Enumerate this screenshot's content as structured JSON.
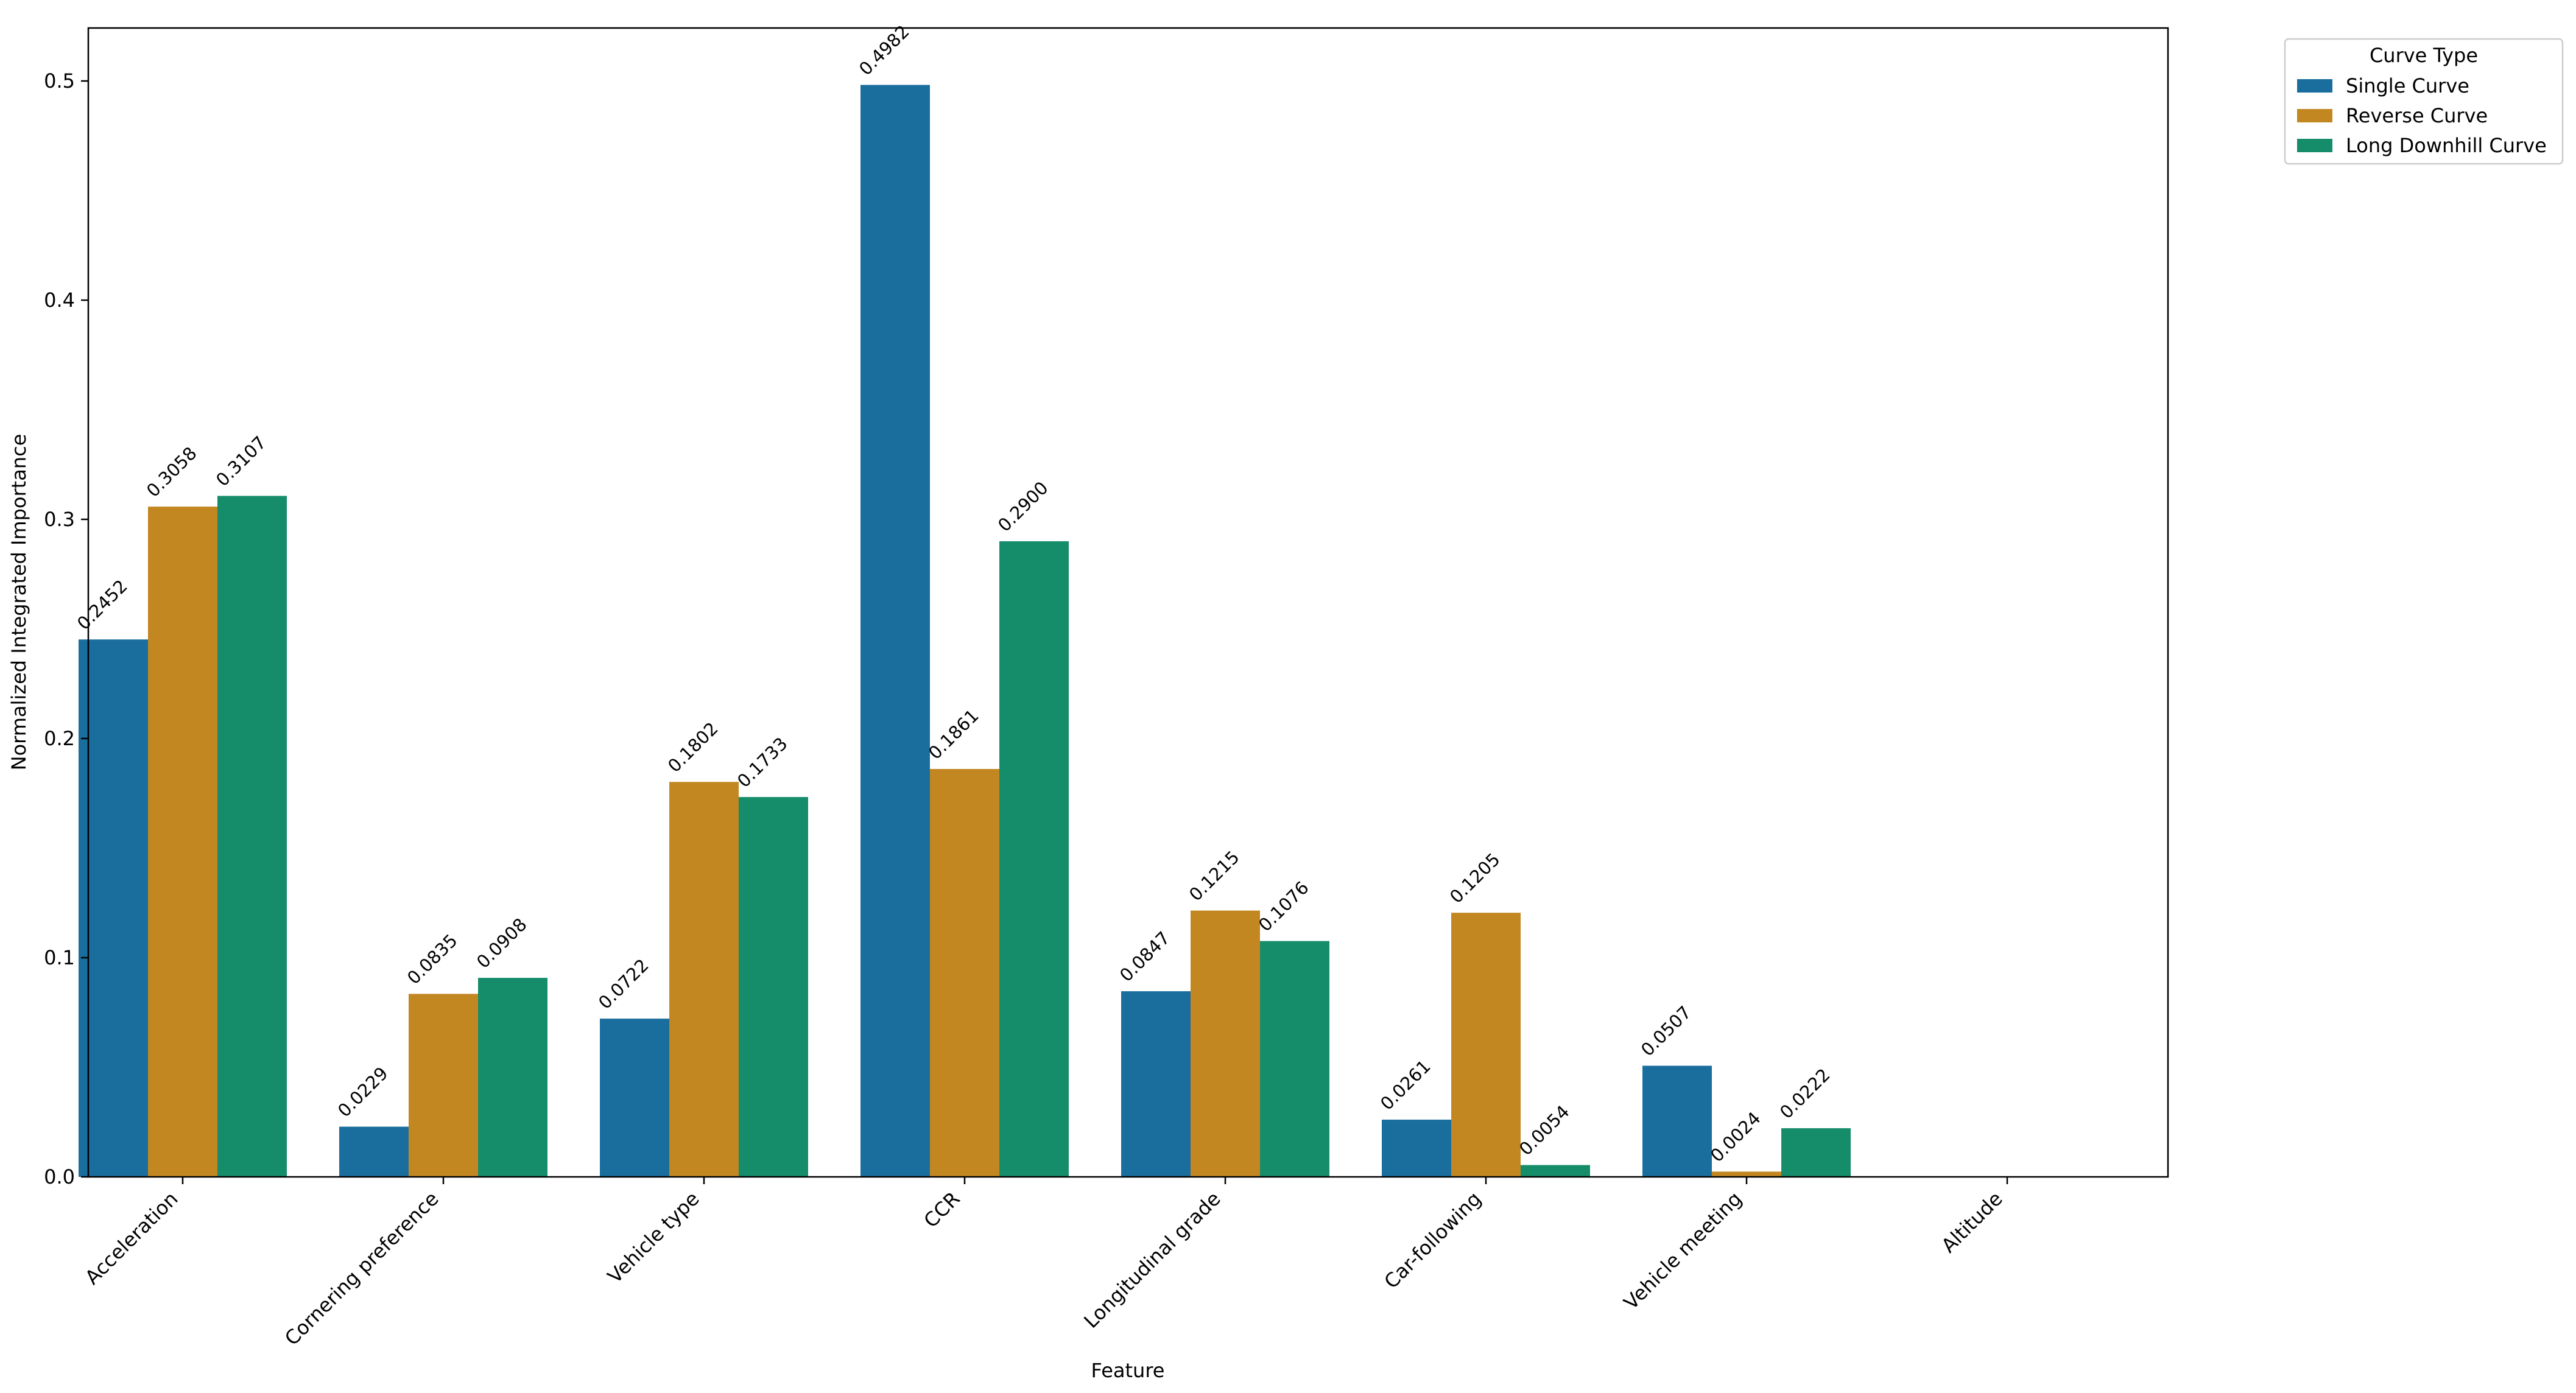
{
  "chart_data": {
    "type": "bar",
    "xlabel": "Feature",
    "ylabel": "Normalized Integrated Importance",
    "ylim": [
      0,
      0.524
    ],
    "yticks": [
      "0.0",
      "0.1",
      "0.2",
      "0.3",
      "0.4",
      "0.5"
    ],
    "grid": false,
    "legend_position": "outside top-right",
    "legend_title": "Curve Type",
    "categories": [
      "Acceleration",
      "Cornering preference",
      "Vehicle type",
      "CCR",
      "Longitudinal grade",
      "Car-following",
      "Vehicle meeting",
      "Altitude"
    ],
    "series": [
      {
        "name": "Single Curve",
        "color": "#1a6e9e",
        "values": [
          0.2452,
          0.0229,
          0.0722,
          0.4982,
          0.0847,
          0.0261,
          0.0507,
          0
        ],
        "labels": [
          "0.2452",
          "0.0229",
          "0.0722",
          "0.4982",
          "0.0847",
          "0.0261",
          "0.0507",
          ""
        ]
      },
      {
        "name": "Reverse Curve",
        "color": "#c38721",
        "values": [
          0.3058,
          0.0835,
          0.1802,
          0.1861,
          0.1215,
          0.1205,
          0.0024,
          0
        ],
        "labels": [
          "0.3058",
          "0.0835",
          "0.1802",
          "0.1861",
          "0.1215",
          "0.1205",
          "0.0024",
          ""
        ]
      },
      {
        "name": "Long Downhill Curve",
        "color": "#168d6a",
        "values": [
          0.3107,
          0.0908,
          0.1733,
          0.29,
          0.1076,
          0.0054,
          0.0222,
          0
        ],
        "labels": [
          "0.3107",
          "0.0908",
          "0.1733",
          "0.2900",
          "0.1076",
          "0.0054",
          "0.0222",
          ""
        ]
      }
    ]
  }
}
